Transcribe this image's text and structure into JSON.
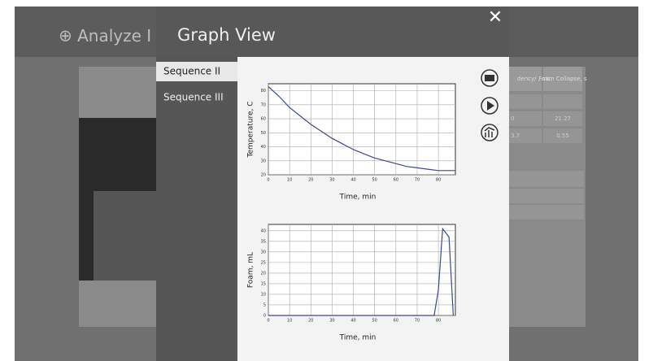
{
  "app": {
    "page_title": "Analyze I",
    "table_headers": [
      "dency/ , mL",
      "Foam Collapse, s"
    ],
    "table_values": [
      "0",
      "21.27",
      "3.7",
      "0.55"
    ]
  },
  "dialog": {
    "title": "Graph View",
    "close": "✕",
    "nav": [
      "Sequence II",
      "Sequence III"
    ]
  },
  "chart_data": [
    {
      "type": "line",
      "ylabel": "Temperature, C",
      "xlabel": "Time, min",
      "x": [
        0,
        5,
        10,
        15,
        20,
        25,
        30,
        35,
        40,
        45,
        50,
        55,
        60,
        65,
        70,
        75,
        80,
        85,
        88
      ],
      "series": [
        {
          "name": "Temperature",
          "color": "#3b4a8c",
          "values": [
            83,
            76,
            68,
            62,
            56,
            51,
            46,
            42,
            38,
            35,
            32,
            30,
            28,
            26,
            25,
            24,
            23,
            23,
            23
          ]
        }
      ],
      "xlim": [
        0,
        88
      ],
      "xticks": [
        0,
        10,
        20,
        30,
        40,
        50,
        60,
        70,
        80
      ],
      "ylim": [
        20,
        85
      ],
      "yticks": [
        20,
        30,
        40,
        50,
        60,
        70,
        80
      ],
      "grid": true
    },
    {
      "type": "line",
      "ylabel": "Foam, mL",
      "xlabel": "Time, min",
      "x": [
        0,
        78,
        80,
        82,
        85,
        87
      ],
      "series": [
        {
          "name": "Foam",
          "color": "#3b4a8c",
          "values": [
            0,
            0,
            12,
            41,
            37,
            0
          ]
        }
      ],
      "xlim": [
        0,
        88
      ],
      "xticks": [
        0,
        10,
        20,
        30,
        40,
        50,
        60,
        70,
        80
      ],
      "ylim": [
        0,
        43
      ],
      "yticks": [
        0,
        5,
        10,
        15,
        20,
        25,
        30,
        35,
        40
      ],
      "grid": true
    }
  ]
}
